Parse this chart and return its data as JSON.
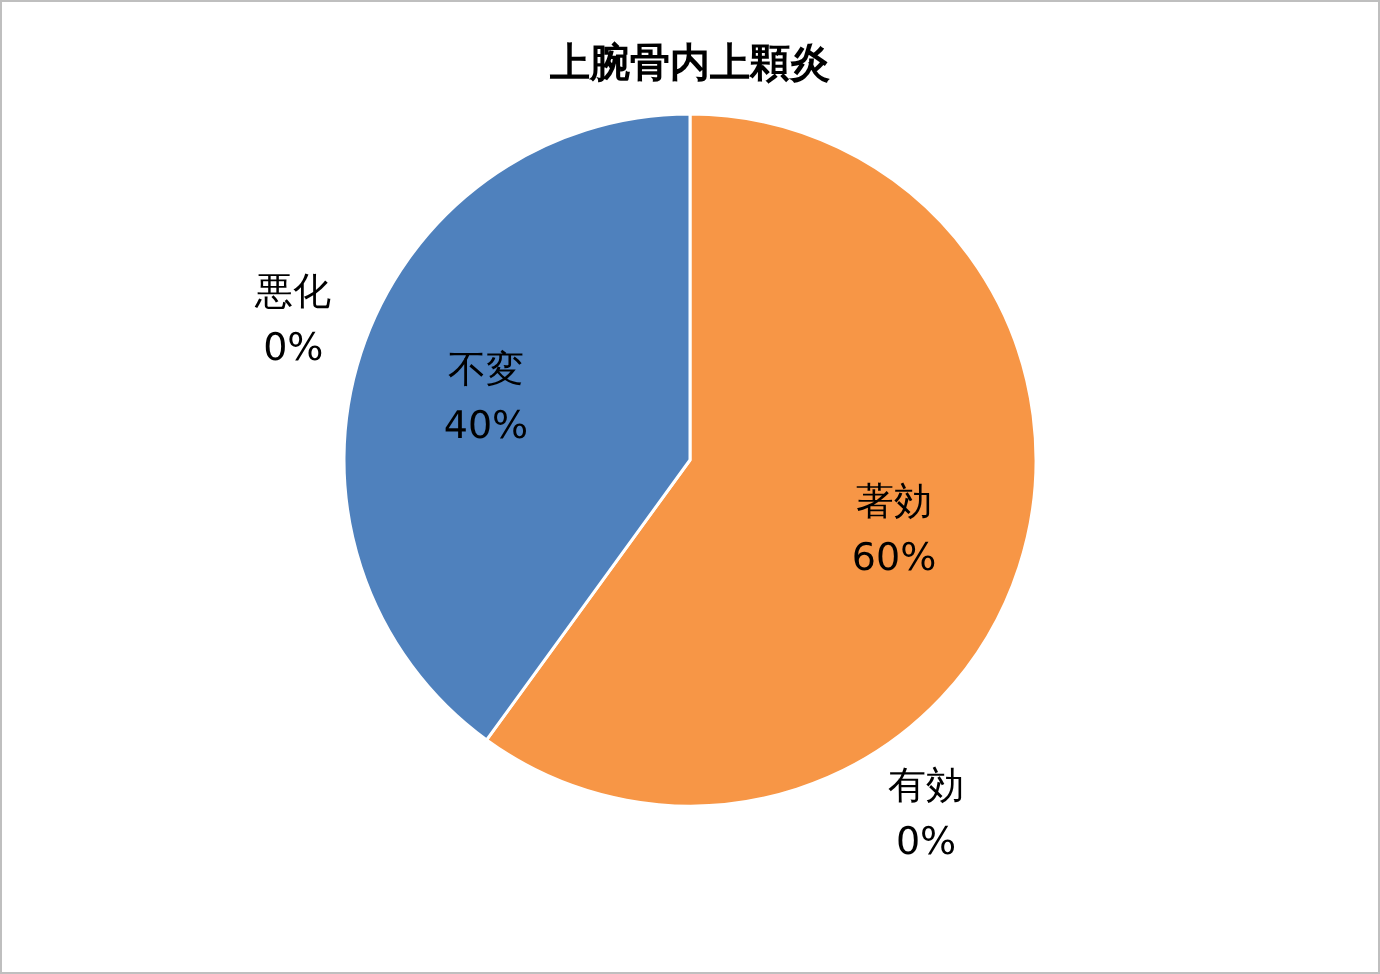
{
  "chart_data": {
    "type": "pie",
    "title": "上腕骨内上顆炎",
    "categories": [
      "著効",
      "有効",
      "不変",
      "悪化"
    ],
    "values": [
      60,
      0,
      40,
      0
    ],
    "colors": [
      "#f79646",
      "#c0504d",
      "#4f81bd",
      "#9bbb59"
    ],
    "value_labels": [
      "60%",
      "0%",
      "40%",
      "0%"
    ],
    "legend": false
  }
}
